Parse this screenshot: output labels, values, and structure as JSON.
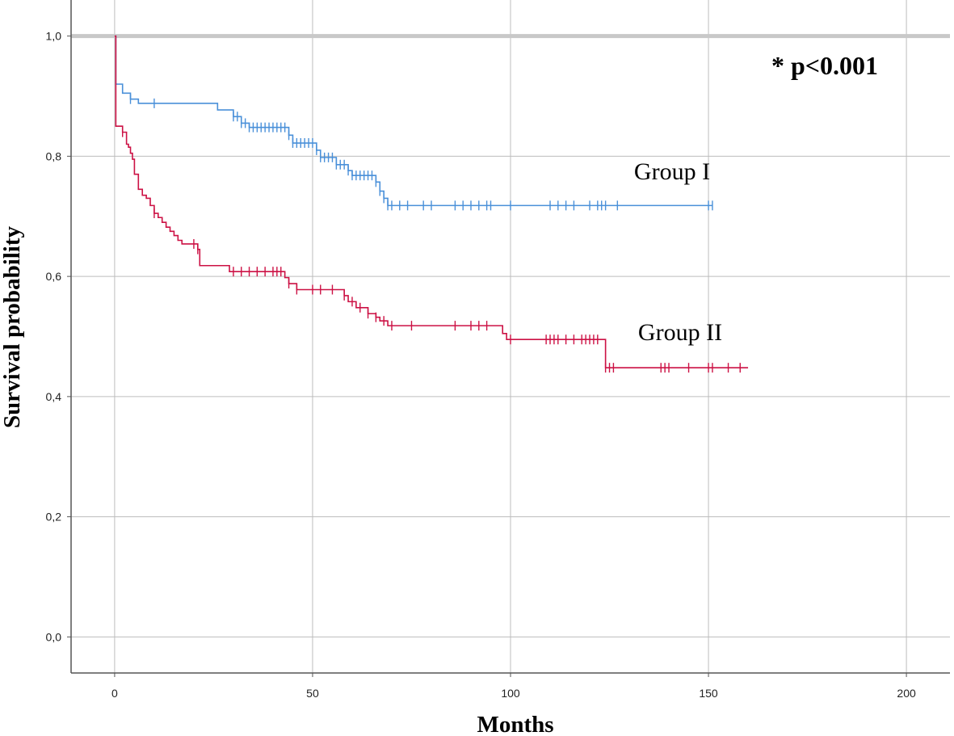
{
  "chart_data": {
    "type": "line",
    "subtype": "kaplan-meier",
    "xlabel": "Months",
    "ylabel": "Survival probability",
    "xlim": [
      -11,
      211
    ],
    "ylim": [
      -0.06,
      1.06
    ],
    "x_ticks": [
      0,
      50,
      100,
      150,
      200
    ],
    "x_tick_labels": [
      "0",
      "50",
      "100",
      "150",
      "200"
    ],
    "y_ticks": [
      0.0,
      0.2,
      0.4,
      0.6,
      0.8,
      1.0
    ],
    "y_tick_labels": [
      "0,0",
      "0,2",
      "0,4",
      "0,6",
      "0,8",
      "1,0"
    ],
    "grid": true,
    "annotation": "* p<0.001",
    "series": [
      {
        "name": "Group I",
        "color": "#4a90d9",
        "steps": [
          [
            0,
            1.0
          ],
          [
            0.3,
            0.92
          ],
          [
            2,
            0.905
          ],
          [
            4,
            0.895
          ],
          [
            6,
            0.888
          ],
          [
            26,
            0.877
          ],
          [
            30,
            0.866
          ],
          [
            32,
            0.855
          ],
          [
            34,
            0.848
          ],
          [
            44,
            0.835
          ],
          [
            45,
            0.822
          ],
          [
            51,
            0.81
          ],
          [
            52,
            0.798
          ],
          [
            56,
            0.786
          ],
          [
            59,
            0.776
          ],
          [
            60,
            0.768
          ],
          [
            66,
            0.757
          ],
          [
            67,
            0.742
          ],
          [
            68,
            0.73
          ],
          [
            69,
            0.718
          ],
          [
            151,
            0.718
          ]
        ],
        "censored_x": [
          4,
          10,
          30,
          31,
          32,
          33,
          34,
          35,
          36,
          37,
          38,
          39,
          40,
          41,
          42,
          43,
          44,
          45,
          46,
          47,
          48,
          49,
          50,
          51,
          52,
          53,
          54,
          55,
          56,
          57,
          58,
          59,
          60,
          61,
          62,
          63,
          64,
          65,
          66,
          67,
          68,
          69,
          70,
          72,
          74,
          78,
          80,
          86,
          88,
          90,
          92,
          94,
          95,
          100,
          110,
          112,
          114,
          116,
          120,
          122,
          123,
          124,
          127,
          150,
          151
        ]
      },
      {
        "name": "Group II",
        "color": "#cc1144",
        "steps": [
          [
            0,
            1.0
          ],
          [
            0.3,
            0.85
          ],
          [
            2,
            0.84
          ],
          [
            3,
            0.82
          ],
          [
            3.5,
            0.815
          ],
          [
            4,
            0.805
          ],
          [
            4.5,
            0.795
          ],
          [
            5,
            0.77
          ],
          [
            6,
            0.745
          ],
          [
            7,
            0.735
          ],
          [
            8,
            0.73
          ],
          [
            9,
            0.718
          ],
          [
            10,
            0.705
          ],
          [
            11,
            0.698
          ],
          [
            12,
            0.69
          ],
          [
            13,
            0.682
          ],
          [
            14,
            0.675
          ],
          [
            15,
            0.668
          ],
          [
            16,
            0.66
          ],
          [
            17,
            0.654
          ],
          [
            21,
            0.645
          ],
          [
            21.5,
            0.618
          ],
          [
            29,
            0.608
          ],
          [
            43,
            0.598
          ],
          [
            44,
            0.588
          ],
          [
            46,
            0.578
          ],
          [
            58,
            0.568
          ],
          [
            59,
            0.558
          ],
          [
            61,
            0.548
          ],
          [
            64,
            0.538
          ],
          [
            66,
            0.532
          ],
          [
            67,
            0.526
          ],
          [
            69,
            0.518
          ],
          [
            98,
            0.505
          ],
          [
            99,
            0.495
          ],
          [
            124,
            0.448
          ],
          [
            160,
            0.448
          ]
        ],
        "censored_x": [
          2,
          10,
          20,
          21,
          30,
          32,
          34,
          36,
          38,
          40,
          41,
          42,
          44,
          46,
          50,
          52,
          55,
          58,
          60,
          62,
          64,
          66,
          68,
          70,
          75,
          86,
          90,
          92,
          94,
          100,
          109,
          110,
          111,
          112,
          114,
          116,
          118,
          119,
          120,
          121,
          122,
          124,
          125,
          126,
          138,
          139,
          140,
          145,
          150,
          151,
          155,
          158
        ]
      }
    ]
  }
}
